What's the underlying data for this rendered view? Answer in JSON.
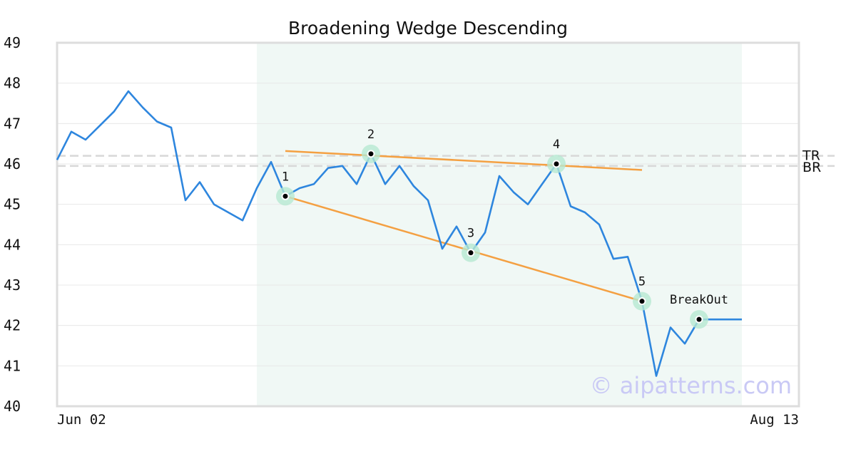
{
  "chart_data": {
    "type": "line",
    "title": "Broadening Wedge Descending",
    "xlabel": "",
    "ylabel": "",
    "ylim": [
      40,
      49
    ],
    "yticks": [
      40,
      41,
      42,
      43,
      44,
      45,
      46,
      47,
      48,
      49
    ],
    "xtick_labels": [
      {
        "index": 0,
        "label": "Jun 02"
      },
      {
        "index": 48,
        "label": "Aug 13"
      }
    ],
    "grid": true,
    "series": [
      {
        "color": "#2e86de",
        "values": [
          46.1,
          46.8,
          46.6,
          46.95,
          47.3,
          47.8,
          47.4,
          47.05,
          46.9,
          45.1,
          45.55,
          45.0,
          44.8,
          44.6,
          45.4,
          46.05,
          45.2,
          45.4,
          45.5,
          45.9,
          45.95,
          45.5,
          46.25,
          45.5,
          45.95,
          45.45,
          45.1,
          43.9,
          44.45,
          43.8,
          44.3,
          45.7,
          45.3,
          45.0,
          45.5,
          46.0,
          44.95,
          44.8,
          44.5,
          43.65,
          43.7,
          42.6,
          40.75,
          41.95,
          41.55,
          42.15,
          42.15,
          42.15,
          42.15
        ]
      }
    ],
    "pattern_region": {
      "start_index": 14,
      "end_index": 48,
      "color": "#f0f8f5"
    },
    "reference_lines": [
      {
        "label": "TR",
        "value": 46.2
      },
      {
        "label": "BR",
        "value": 45.95
      }
    ],
    "trendlines": [
      {
        "color": "#f4a042",
        "from": {
          "index": 16,
          "value": 46.32
        },
        "to": {
          "index": 41,
          "value": 45.85
        }
      },
      {
        "color": "#f4a042",
        "from": {
          "index": 16,
          "value": 45.2
        },
        "to": {
          "index": 41,
          "value": 42.6
        }
      }
    ],
    "pivots": [
      {
        "label": "1",
        "index": 16,
        "value": 45.2
      },
      {
        "label": "2",
        "index": 22,
        "value": 46.25
      },
      {
        "label": "3",
        "index": 29,
        "value": 43.8
      },
      {
        "label": "4",
        "index": 35,
        "value": 46.0
      },
      {
        "label": "5",
        "index": 41,
        "value": 42.6
      },
      {
        "label": "BreakOut",
        "index": 45,
        "value": 42.15
      }
    ],
    "watermark": "© aipatterns.com"
  }
}
